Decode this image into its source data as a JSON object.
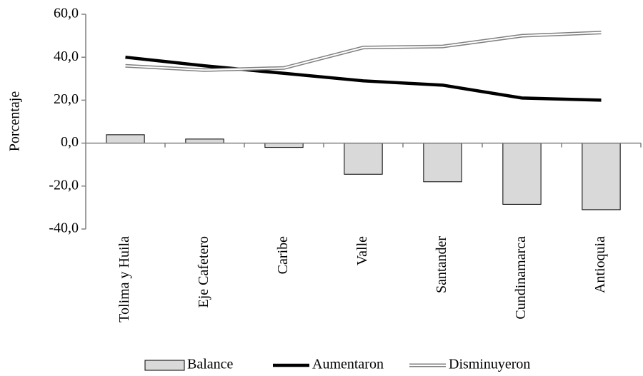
{
  "chart_data": {
    "type": "bar_line",
    "y_label": "Porcentaje",
    "categories": [
      "Tolima y Huila",
      "Eje Cafetero",
      "Caribe",
      "Valle",
      "Santander",
      "Cundinamarca",
      "Antioquia"
    ],
    "series": [
      {
        "name": "Balance",
        "type": "bar",
        "color": "#d9d9d9",
        "values": [
          3.9,
          1.9,
          -2.0,
          -14.5,
          -18.0,
          -28.5,
          -31.0
        ]
      },
      {
        "name": "Aumentaron",
        "type": "line",
        "color": "#000000",
        "values": [
          40.0,
          36.0,
          32.5,
          29.0,
          27.0,
          21.0,
          20.0
        ]
      },
      {
        "name": "Disminuyeron",
        "type": "line",
        "style": "double",
        "color": "#808080",
        "values": [
          36.0,
          34.0,
          35.0,
          44.5,
          45.0,
          50.0,
          51.5
        ]
      }
    ],
    "ylim": [
      -40,
      60
    ],
    "yticks": [
      {
        "value": -40,
        "label": "-40,0"
      },
      {
        "value": -20,
        "label": "-20,0"
      },
      {
        "value": 0,
        "label": "0,0"
      },
      {
        "value": 20,
        "label": "20,0"
      },
      {
        "value": 40,
        "label": "40,0"
      },
      {
        "value": 60,
        "label": "60,0"
      }
    ],
    "legend": "bottom"
  }
}
